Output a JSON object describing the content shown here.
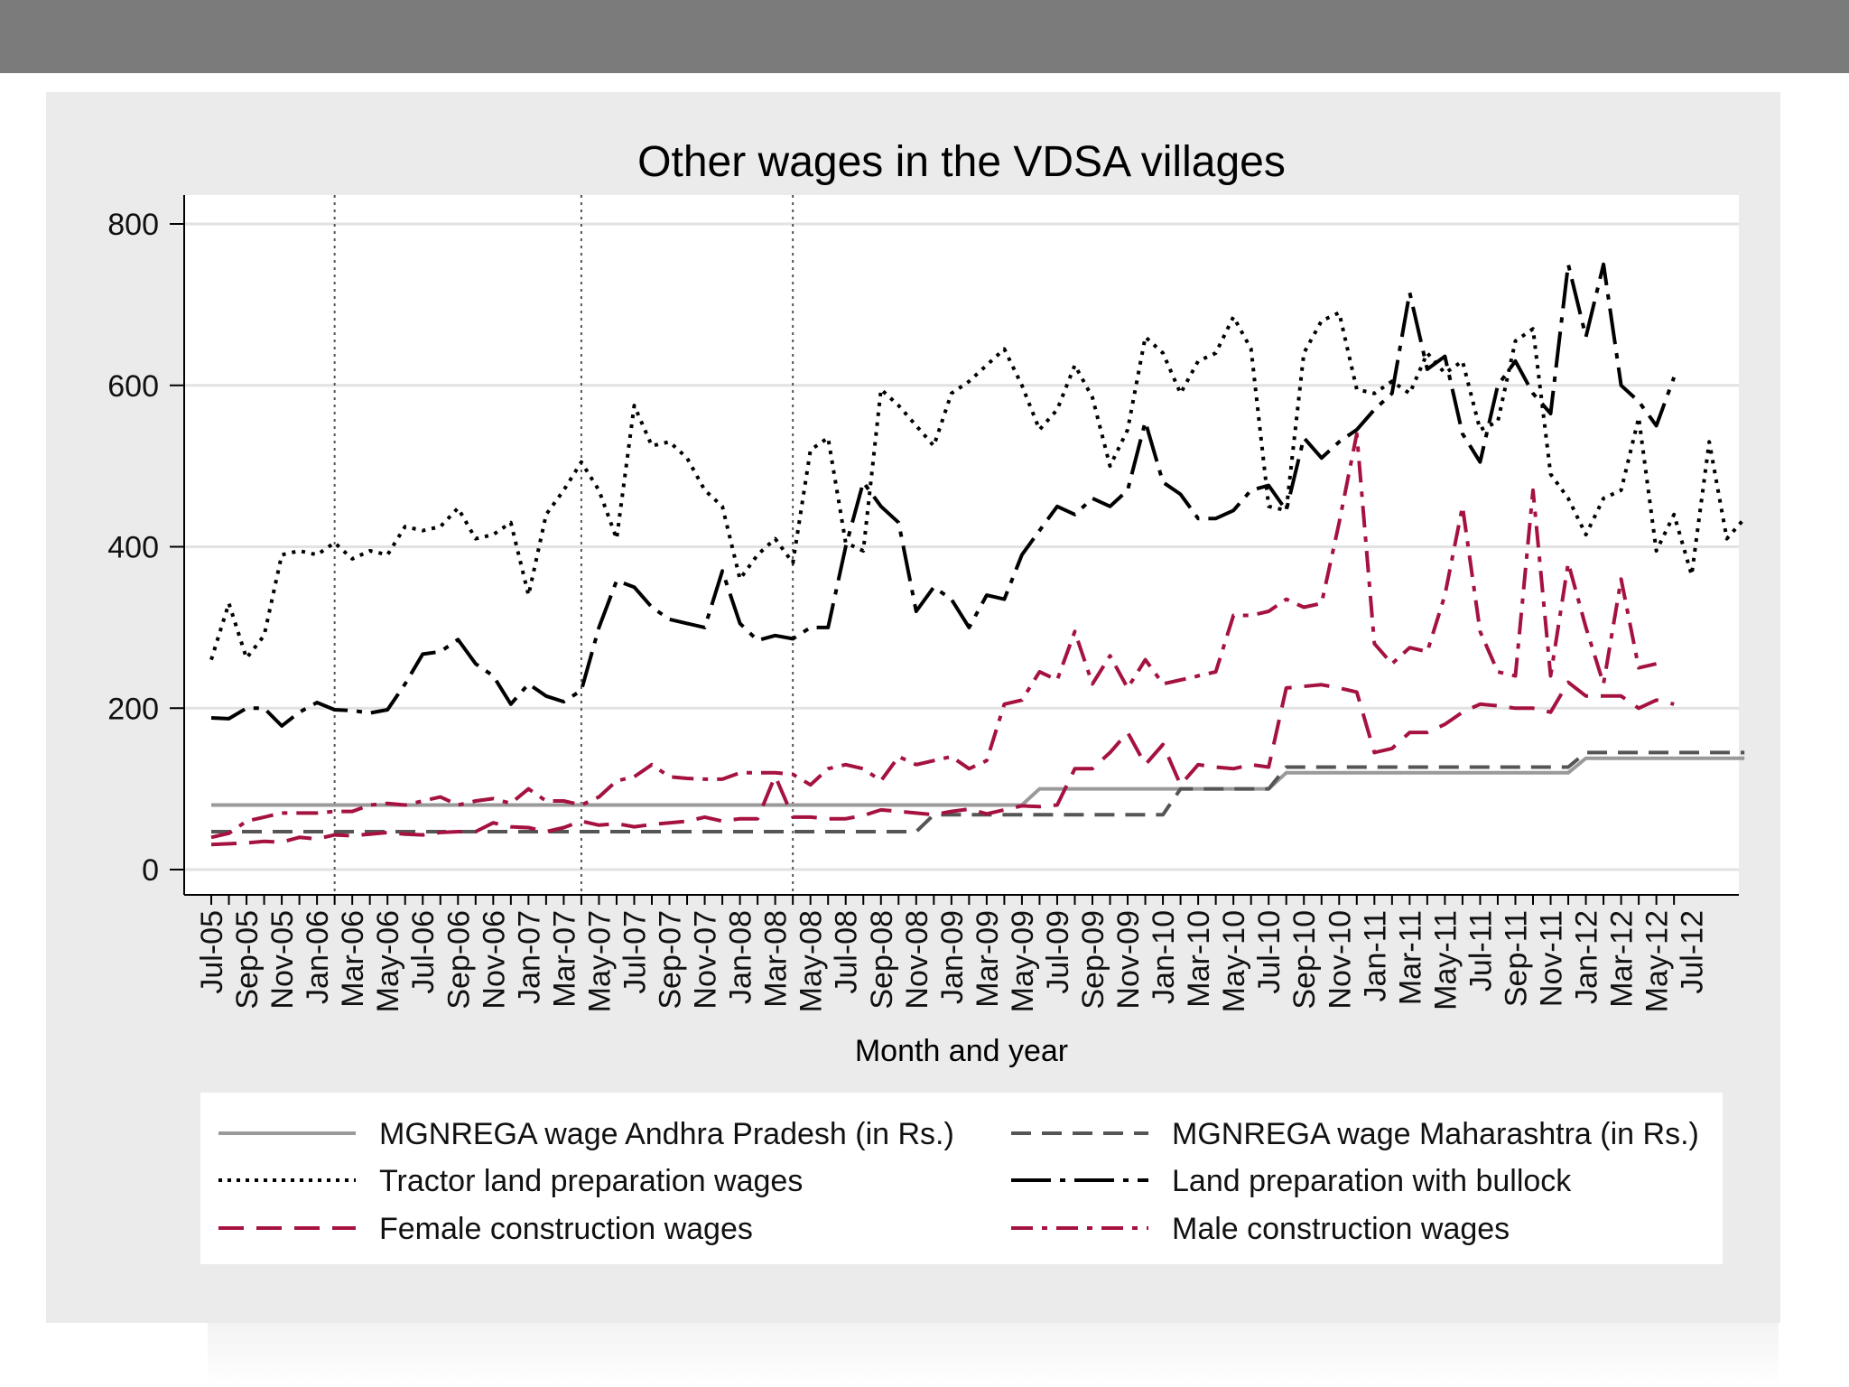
{
  "chart_data": {
    "type": "line",
    "title": "Other wages in the VDSA villages",
    "xlabel": "Month and year",
    "ylabel": "",
    "ylim": [
      0,
      800
    ],
    "yticks": [
      0,
      200,
      400,
      600,
      800
    ],
    "grid": true,
    "legend_position": "bottom",
    "tick_labels": [
      "Jul-05",
      "Sep-05",
      "Nov-05",
      "Jan-06",
      "Mar-06",
      "May-06",
      "Jul-06",
      "Sep-06",
      "Nov-06",
      "Jan-07",
      "Mar-07",
      "May-07",
      "Jul-07",
      "Sep-07",
      "Nov-07",
      "Jan-08",
      "Mar-08",
      "May-08",
      "Jul-08",
      "Sep-08",
      "Nov-08",
      "Jan-09",
      "Mar-09",
      "May-09",
      "Jul-09",
      "Sep-09",
      "Nov-09",
      "Jan-10",
      "Mar-10",
      "May-10",
      "Jul-10",
      "Sep-10",
      "Nov-10",
      "Jan-11",
      "Mar-11",
      "May-11",
      "Jul-11",
      "Sep-11",
      "Nov-11",
      "Jan-12",
      "Mar-12",
      "May-12",
      "Jul-12"
    ],
    "vertical_reference_lines": [
      "Feb-06",
      "Apr-07",
      "Apr-08"
    ],
    "series": [
      {
        "name": "MGNREGA wage Andhra Pradesh (in Rs.)",
        "style": "solid",
        "color": "#9a9a9a",
        "values": [
          80,
          80,
          80,
          80,
          80,
          80,
          80,
          80,
          80,
          80,
          80,
          80,
          80,
          80,
          80,
          80,
          80,
          80,
          80,
          80,
          80,
          80,
          80,
          80,
          80,
          80,
          80,
          80,
          80,
          80,
          80,
          80,
          80,
          80,
          80,
          80,
          80,
          80,
          80,
          80,
          80,
          80,
          80,
          80,
          80,
          80,
          80,
          100,
          100,
          100,
          100,
          100,
          100,
          100,
          100,
          100,
          100,
          100,
          100,
          100,
          100,
          120,
          120,
          120,
          120,
          120,
          120,
          120,
          120,
          120,
          120,
          120,
          120,
          120,
          120,
          120,
          120,
          120,
          138,
          138,
          138,
          138,
          138,
          138,
          138,
          138,
          138,
          138
        ]
      },
      {
        "name": "MGNREGA wage Maharashtra (in Rs.)",
        "style": "dash",
        "color": "#555555",
        "values": [
          47,
          47,
          47,
          47,
          47,
          47,
          47,
          47,
          47,
          47,
          47,
          47,
          47,
          47,
          47,
          47,
          47,
          47,
          47,
          47,
          47,
          47,
          47,
          47,
          47,
          47,
          47,
          47,
          47,
          47,
          47,
          47,
          47,
          47,
          47,
          47,
          47,
          47,
          47,
          47,
          47,
          68,
          68,
          68,
          68,
          68,
          68,
          68,
          68,
          68,
          68,
          68,
          68,
          68,
          68,
          100,
          100,
          100,
          100,
          100,
          100,
          127,
          127,
          127,
          127,
          127,
          127,
          127,
          127,
          127,
          127,
          127,
          127,
          127,
          127,
          127,
          127,
          127,
          145,
          145,
          145,
          145,
          145,
          145,
          145,
          145,
          145,
          145
        ]
      },
      {
        "name": "Tractor land preparation wages",
        "style": "dot",
        "color": "#000000",
        "values": [
          260,
          330,
          262,
          290,
          390,
          395,
          390,
          405,
          385,
          395,
          390,
          425,
          420,
          425,
          448,
          410,
          415,
          430,
          340,
          440,
          470,
          505,
          470,
          410,
          575,
          525,
          530,
          510,
          470,
          450,
          360,
          390,
          410,
          380,
          520,
          535,
          405,
          395,
          595,
          575,
          550,
          525,
          590,
          605,
          625,
          645,
          600,
          545,
          570,
          625,
          585,
          500,
          545,
          660,
          640,
          590,
          630,
          640,
          685,
          645,
          450,
          445,
          640,
          680,
          690,
          595,
          590,
          605,
          590,
          640,
          615,
          630,
          545,
          555,
          655,
          670,
          490,
          460,
          415,
          460,
          470,
          560,
          395,
          440,
          365,
          530,
          410,
          435
        ]
      },
      {
        "name": "Land preparation with bullock",
        "style": "longdashdot",
        "color": "#000000",
        "values": [
          188,
          187,
          200,
          200,
          178,
          195,
          207,
          198,
          197,
          194,
          198,
          230,
          267,
          270,
          285,
          255,
          240,
          205,
          230,
          215,
          208,
          222,
          300,
          358,
          350,
          325,
          310,
          305,
          300,
          370,
          305,
          284,
          290,
          286,
          300,
          300,
          400,
          480,
          450,
          430,
          320,
          350,
          335,
          300,
          340,
          335,
          390,
          420,
          450,
          440,
          460,
          450,
          470,
          555,
          480,
          465,
          435,
          435,
          445,
          470,
          476,
          445,
          535,
          510,
          530,
          545,
          570,
          590,
          715,
          620,
          636,
          540,
          505,
          600,
          630,
          590,
          565,
          750,
          660,
          750,
          600,
          580,
          550,
          610
        ]
      },
      {
        "name": "Female construction wages",
        "style": "longdash",
        "color": "#a5123f",
        "values": [
          31,
          32,
          33,
          35,
          34,
          40,
          38,
          43,
          42,
          44,
          46,
          44,
          43,
          46,
          47,
          47,
          58,
          53,
          52,
          47,
          52,
          60,
          55,
          57,
          53,
          56,
          58,
          60,
          65,
          60,
          63,
          63,
          116,
          65,
          65,
          63,
          63,
          67,
          74,
          72,
          70,
          68,
          72,
          75,
          69,
          74,
          79,
          78,
          80,
          125,
          125,
          145,
          170,
          130,
          155,
          105,
          130,
          127,
          125,
          130,
          127,
          225,
          227,
          229,
          225,
          220,
          145,
          150,
          170,
          170,
          180,
          195,
          205,
          203,
          200,
          200,
          195,
          232,
          215,
          215,
          215,
          200,
          210,
          205
        ]
      },
      {
        "name": "Male construction wages",
        "style": "dashdot",
        "color": "#a5123f",
        "values": [
          40,
          45,
          60,
          65,
          70,
          70,
          70,
          72,
          72,
          80,
          82,
          80,
          85,
          90,
          80,
          85,
          88,
          82,
          100,
          85,
          85,
          80,
          90,
          110,
          115,
          130,
          115,
          113,
          112,
          112,
          120,
          120,
          120,
          118,
          105,
          125,
          130,
          125,
          110,
          140,
          130,
          135,
          140,
          125,
          135,
          205,
          210,
          245,
          235,
          295,
          230,
          265,
          225,
          260,
          230,
          235,
          240,
          245,
          315,
          315,
          320,
          335,
          325,
          330,
          430,
          540,
          280,
          255,
          275,
          270,
          340,
          450,
          295,
          245,
          240,
          470,
          240,
          380,
          300,
          230,
          360,
          250,
          255
        ]
      }
    ]
  },
  "legend": {
    "left": [
      "MGNREGA wage Andhra Pradesh (in Rs.)",
      "Tractor land preparation wages",
      "Female construction wages"
    ],
    "right": [
      "MGNREGA wage Maharashtra (in Rs.)",
      "Land preparation with bullock",
      "Male construction wages"
    ]
  },
  "colors": {
    "grid": "#e2e2e2",
    "plot_bg": "#ffffff",
    "panel_bg": "#ebebeb",
    "top_bar": "#7b7b7b"
  }
}
